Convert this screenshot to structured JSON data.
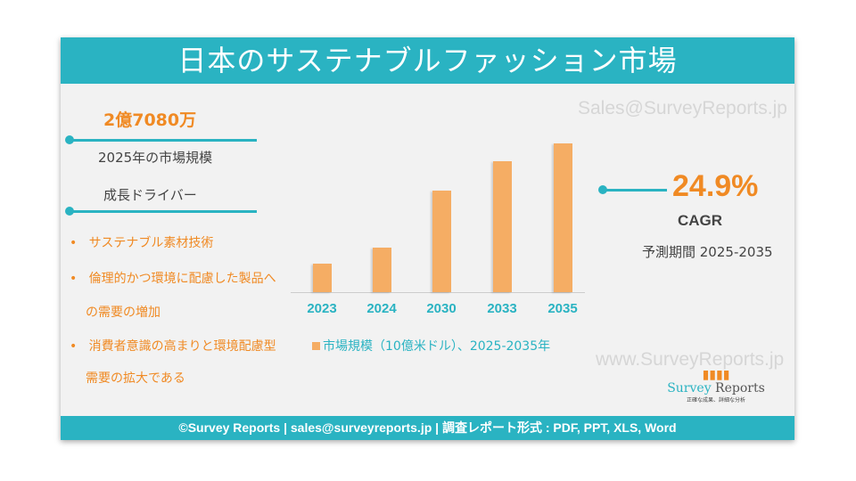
{
  "title": "日本のサステナブルファッション市場",
  "watermark_top": "Sales@SurveyReports.jp",
  "watermark_bottom": "www.SurveyReports.jp",
  "market_size": {
    "value": "2億7080万",
    "label": "2025年の市場規模"
  },
  "drivers": {
    "heading": "成長ドライバー",
    "items": [
      "サステナブル素材技術",
      "倫理的かつ環境に配慮した製品へ",
      "の需要の増加",
      "消費者意識の高まりと環境配慮型",
      "需要の拡大である"
    ]
  },
  "cagr": {
    "value": "24.9%",
    "label": "CAGR",
    "period": "予測期間 2025-2035"
  },
  "logo": {
    "name1": "Survey",
    "name2": " Reports",
    "tagline": "正確な成果、詳細な分析"
  },
  "footer": "©Survey Reports | sales@surveyreports.jp |  調査レポート形式 : PDF, PPT, XLS, Word",
  "colors": {
    "accent": "#2ab3c2",
    "bar": "#f5ad64",
    "highlight": "#f08a24"
  },
  "chart_data": {
    "type": "bar",
    "categories": [
      "2023",
      "2024",
      "2030",
      "2033",
      "2035"
    ],
    "values": [
      0.48,
      0.75,
      1.7,
      2.19,
      2.49
    ],
    "legend": "市場規模（10億米ドル）、2025-2035年",
    "legend_position": "bottom",
    "grid": false
  }
}
